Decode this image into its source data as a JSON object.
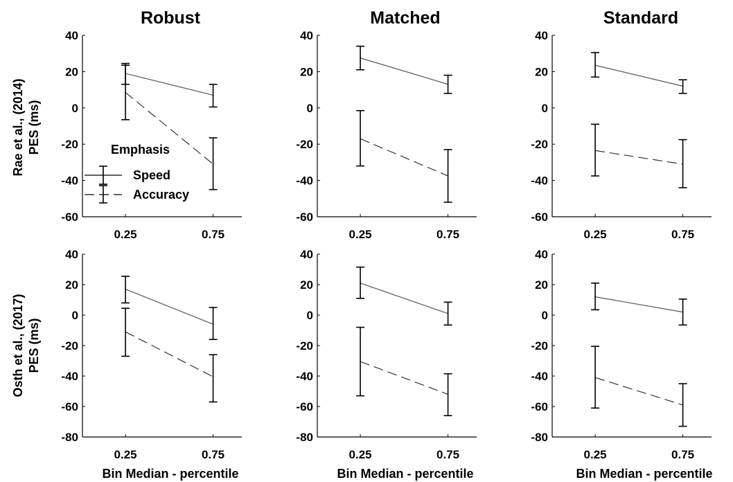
{
  "column_titles": [
    "Robust",
    "Matched",
    "Standard"
  ],
  "row_labels": [
    [
      "Rae et al., (2014)",
      "PES (ms)"
    ],
    [
      "Osth et al., (2017)",
      "PES (ms)"
    ]
  ],
  "xlabel": "Bin Median - percentile",
  "legend": {
    "title": "Emphasis",
    "entries": [
      "Speed",
      "Accuracy"
    ]
  },
  "chart_data": [
    {
      "type": "line",
      "row": 0,
      "col": 0,
      "title": "Robust",
      "ylabel": "PES (ms)",
      "ylim": [
        -60,
        40
      ],
      "yticks": [
        40,
        20,
        0,
        -20,
        -40,
        -60
      ],
      "x": [
        0.25,
        0.75
      ],
      "xticks": [
        "0.25",
        "0.75"
      ],
      "series": [
        {
          "name": "Speed",
          "style": "solid",
          "values": [
            19,
            7
          ],
          "err_low": [
            13,
            0.5
          ],
          "err_high": [
            24.5,
            13
          ]
        },
        {
          "name": "Accuracy",
          "style": "dashed",
          "values": [
            8.5,
            -31
          ],
          "err_low": [
            -6.5,
            -45
          ],
          "err_high": [
            23.5,
            -16.5
          ]
        }
      ]
    },
    {
      "type": "line",
      "row": 0,
      "col": 1,
      "title": "Matched",
      "ylim": [
        -60,
        40
      ],
      "yticks": [
        40,
        20,
        0,
        -20,
        -40,
        -60
      ],
      "x": [
        0.25,
        0.75
      ],
      "xticks": [
        "0.25",
        "0.75"
      ],
      "series": [
        {
          "name": "Speed",
          "style": "solid",
          "values": [
            27.5,
            13
          ],
          "err_low": [
            21,
            8
          ],
          "err_high": [
            34,
            18
          ]
        },
        {
          "name": "Accuracy",
          "style": "dashed",
          "values": [
            -17,
            -37.5
          ],
          "err_low": [
            -32,
            -52
          ],
          "err_high": [
            -1.5,
            -23
          ]
        }
      ]
    },
    {
      "type": "line",
      "row": 0,
      "col": 2,
      "title": "Standard",
      "ylim": [
        -60,
        40
      ],
      "yticks": [
        40,
        20,
        0,
        -20,
        -40,
        -60
      ],
      "x": [
        0.25,
        0.75
      ],
      "xticks": [
        "0.25",
        "0.75"
      ],
      "series": [
        {
          "name": "Speed",
          "style": "solid",
          "values": [
            23.5,
            12
          ],
          "err_low": [
            17,
            8
          ],
          "err_high": [
            30.5,
            15.5
          ]
        },
        {
          "name": "Accuracy",
          "style": "dashed",
          "values": [
            -23.5,
            -31
          ],
          "err_low": [
            -37.5,
            -44
          ],
          "err_high": [
            -9,
            -17.5
          ]
        }
      ]
    },
    {
      "type": "line",
      "row": 1,
      "col": 0,
      "ylabel": "PES (ms)",
      "xlabel": "Bin Median - percentile",
      "ylim": [
        -80,
        40
      ],
      "yticks": [
        40,
        20,
        0,
        -20,
        -40,
        -60,
        -80
      ],
      "x": [
        0.25,
        0.75
      ],
      "xticks": [
        "0.25",
        "0.75"
      ],
      "series": [
        {
          "name": "Speed",
          "style": "solid",
          "values": [
            17,
            -6
          ],
          "err_low": [
            8,
            -16
          ],
          "err_high": [
            25.5,
            5
          ]
        },
        {
          "name": "Accuracy",
          "style": "dashed",
          "values": [
            -11,
            -40.5
          ],
          "err_low": [
            -27,
            -57
          ],
          "err_high": [
            4.5,
            -26
          ]
        }
      ]
    },
    {
      "type": "line",
      "row": 1,
      "col": 1,
      "xlabel": "Bin Median - percentile",
      "ylim": [
        -80,
        40
      ],
      "yticks": [
        40,
        20,
        0,
        -20,
        -40,
        -60,
        -80
      ],
      "x": [
        0.25,
        0.75
      ],
      "xticks": [
        "0.25",
        "0.75"
      ],
      "series": [
        {
          "name": "Speed",
          "style": "solid",
          "values": [
            21,
            1
          ],
          "err_low": [
            11,
            -6.5
          ],
          "err_high": [
            31.5,
            8.5
          ]
        },
        {
          "name": "Accuracy",
          "style": "dashed",
          "values": [
            -30.5,
            -52
          ],
          "err_low": [
            -53,
            -66
          ],
          "err_high": [
            -8,
            -38.5
          ]
        }
      ]
    },
    {
      "type": "line",
      "row": 1,
      "col": 2,
      "xlabel": "Bin Median - percentile",
      "ylim": [
        -80,
        40
      ],
      "yticks": [
        40,
        20,
        0,
        -20,
        -40,
        -60,
        -80
      ],
      "x": [
        0.25,
        0.75
      ],
      "xticks": [
        "0.25",
        "0.75"
      ],
      "series": [
        {
          "name": "Speed",
          "style": "solid",
          "values": [
            12,
            2
          ],
          "err_low": [
            3.5,
            -6.5
          ],
          "err_high": [
            21,
            10.5
          ]
        },
        {
          "name": "Accuracy",
          "style": "dashed",
          "values": [
            -41,
            -59
          ],
          "err_low": [
            -61,
            -73
          ],
          "err_high": [
            -20.5,
            -45
          ]
        }
      ]
    }
  ]
}
